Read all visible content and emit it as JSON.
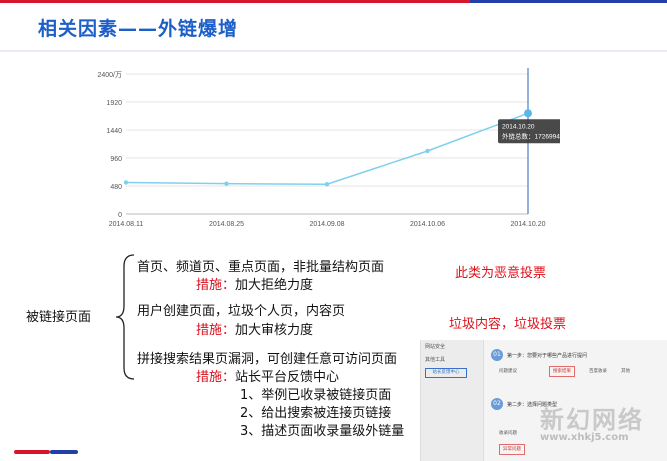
{
  "slide": {
    "title": "相关因素——外链爆增"
  },
  "chart_data": {
    "type": "line",
    "x": [
      "2014.08.11",
      "2014.08.25",
      "2014.09.08",
      "2014.10.06",
      "2014.10.20"
    ],
    "y_tick_labels": [
      "0",
      "480",
      "960",
      "1440",
      "1920",
      "2400/万"
    ],
    "ylim": [
      0,
      2400
    ],
    "grid": true,
    "series": [
      {
        "values": [
          540,
          520,
          510,
          1080,
          1727
        ]
      }
    ],
    "tooltip": {
      "title": "2014.10.20",
      "text": "外链总数：17269948"
    },
    "line_color": "#7fd0ee"
  },
  "diagram": {
    "root_label": "被链接页面",
    "groups": [
      {
        "line": "首页、频道页、重点页面，非批量结构页面",
        "measure_label": "措施：",
        "measure_text": "加大拒绝力度"
      },
      {
        "line": "用户创建页面，垃圾个人页，内容页",
        "measure_label": "措施：",
        "measure_text": "加大审核力度"
      },
      {
        "line": "拼接搜索结果页漏洞，可创建任意可访问页面",
        "measure_label": "措施：",
        "measure_text": "站长平台反馈中心"
      }
    ],
    "steps": [
      "1、举例已收录被链接页面",
      "2、给出搜索被连接页链接",
      "3、描述页面收录量级外链量"
    ]
  },
  "notes": {
    "malicious": "此类为恶意投票",
    "spam": "垃圾内容，垃圾投票"
  },
  "thumbnail": {
    "sidebar": [
      "网站安全",
      "其他工具"
    ],
    "sidebar_button": "站长反馈中心",
    "step1": "第一步：您要对于哪些产品进行提问",
    "options": [
      "问题建议",
      "搜索结果",
      "百度收录",
      "其他"
    ],
    "step2": "第二步：选择问题类型",
    "step2_opts": [
      "收录问题",
      "异常问题"
    ]
  },
  "watermark": {
    "text": "新幻网络",
    "url": "www.xhkj5.com"
  },
  "colors": {
    "title_blue": "#1d5fc9",
    "accent_red": "#d5162b",
    "accent_blue": "#233fa8",
    "line": "#7fd0ee"
  }
}
